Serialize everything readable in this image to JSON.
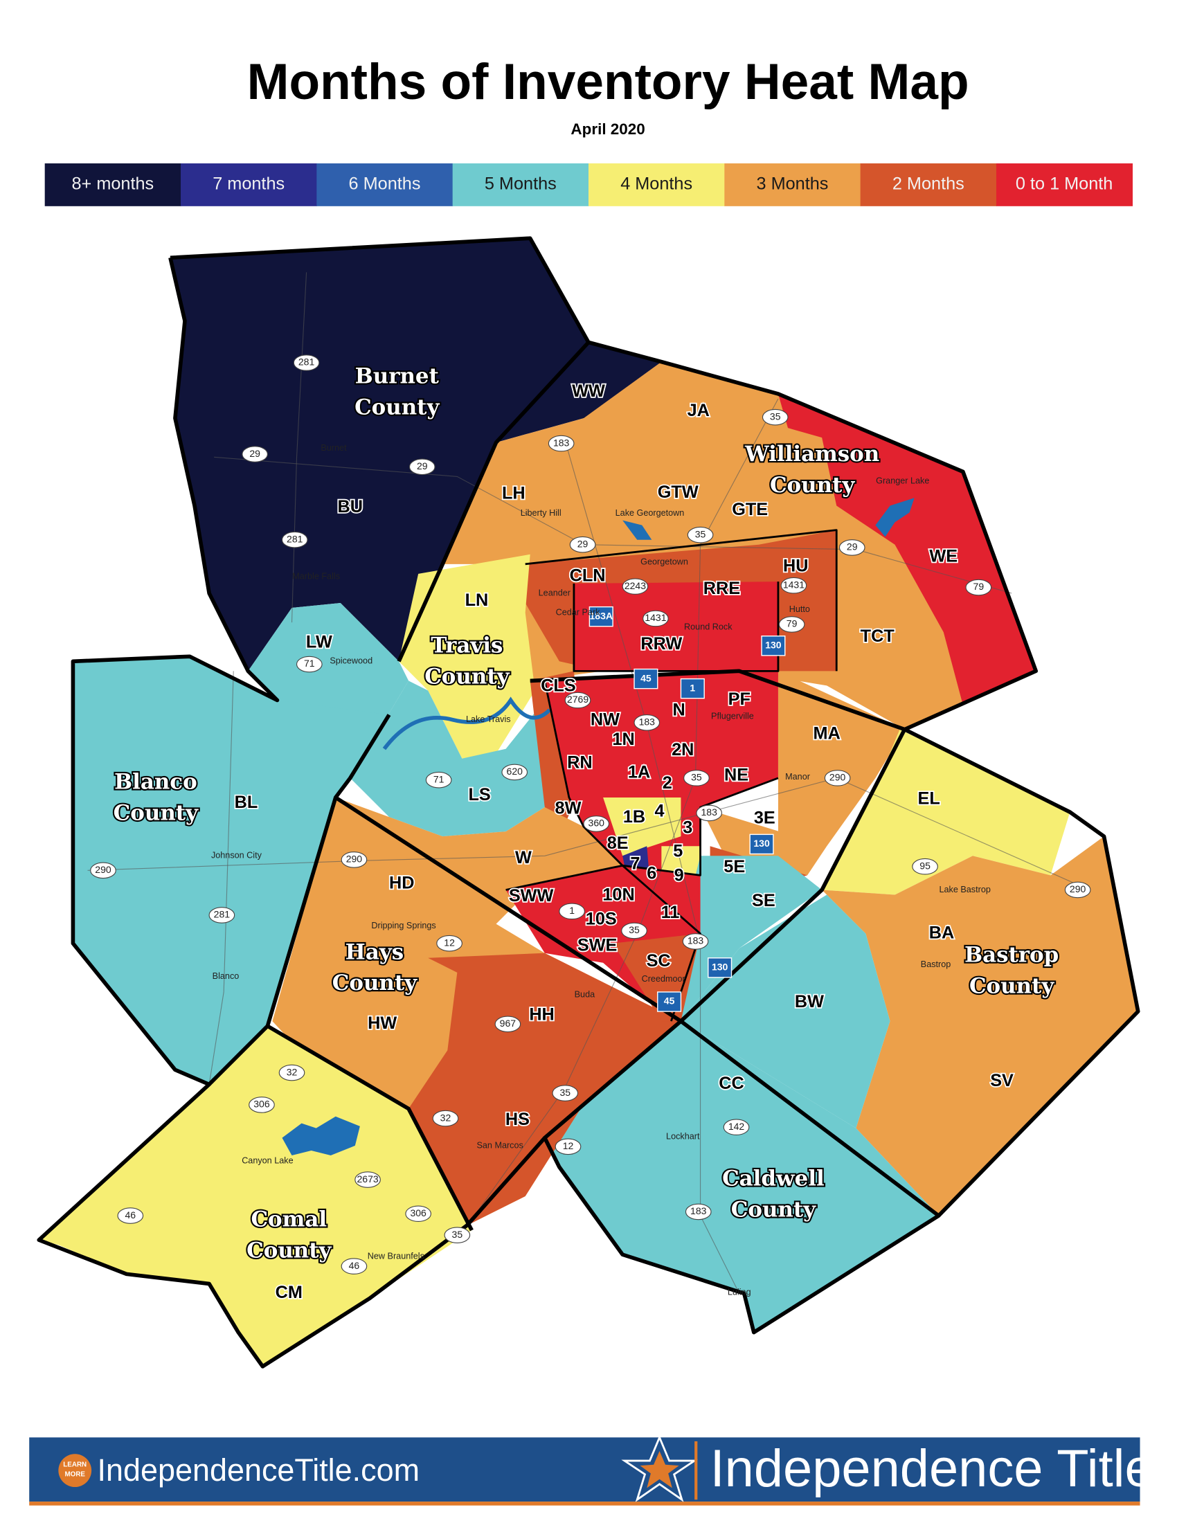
{
  "header": {
    "title": "Months of Inventory Heat Map",
    "subtitle": "April 2020"
  },
  "legend": [
    {
      "label": "8+ months",
      "color": "#10143a"
    },
    {
      "label": "7 months",
      "color": "#2b2d8e"
    },
    {
      "label": "6 Months",
      "color": "#2f60ad"
    },
    {
      "label": "5 Months",
      "color": "#6fcbcf"
    },
    {
      "label": "4 Months",
      "color": "#f6ee73"
    },
    {
      "label": "3 Months",
      "color": "#eca04a"
    },
    {
      "label": "2 Months",
      "color": "#d5552b"
    },
    {
      "label": "0 to 1 Month",
      "color": "#e2222f"
    }
  ],
  "counties": [
    [
      "Burnet",
      "County"
    ],
    [
      "Williamson",
      "County"
    ],
    [
      "Travis",
      "County"
    ],
    [
      "Blanco",
      "County"
    ],
    [
      "Hays",
      "County"
    ],
    [
      "Bastrop",
      "County"
    ],
    [
      "Caldwell",
      "County"
    ],
    [
      "Comal",
      "County"
    ]
  ],
  "areas": [
    "WW",
    "JA",
    "LH",
    "GTW",
    "GTE",
    "HU",
    "WE",
    "TCT",
    "CLN",
    "RRE",
    "RRW",
    "LN",
    "LW",
    "CLS",
    "NW",
    "N",
    "PF",
    "MA",
    "1N",
    "2N",
    "RN",
    "1A",
    "2",
    "NE",
    "LS",
    "8W",
    "1B",
    "4",
    "3",
    "3E",
    "8E",
    "W",
    "7",
    "6",
    "5",
    "9",
    "5E",
    "SE",
    "SWW",
    "10N",
    "10S",
    "11",
    "SWE",
    "SC",
    "HD",
    "HW",
    "HH",
    "BL",
    "EL",
    "BA",
    "BW",
    "CC",
    "SV",
    "HS",
    "CM",
    "BU"
  ],
  "places": [
    "Burnet",
    "Marble Falls",
    "Liberty Hill",
    "Lake Georgetown",
    "Georgetown",
    "Granger Lake",
    "Leander",
    "Cedar Park",
    "Round Rock",
    "Hutto",
    "Pflugerville",
    "Spicewood",
    "Lake Travis",
    "Manor",
    "Johnson City",
    "Blanco",
    "Dripping Springs",
    "Buda",
    "Creedmoor",
    "Lake Bastrop",
    "Bastrop",
    "Lockhart",
    "San Marcos",
    "Canyon Lake",
    "New Braunfels",
    "Luling"
  ],
  "highways": [
    "281",
    "29",
    "29",
    "281",
    "183",
    "35",
    "29",
    "35",
    "29",
    "79",
    "2243",
    "1431",
    "1431",
    "79",
    "71",
    "2769",
    "183",
    "620",
    "71",
    "360",
    "290",
    "35",
    "183",
    "290",
    "290",
    "281",
    "95",
    "290",
    "1",
    "35",
    "12",
    "183",
    "967",
    "32",
    "306",
    "35",
    "32",
    "12",
    "142",
    "2673",
    "306",
    "46",
    "46",
    "183",
    "35"
  ],
  "toll_roads": [
    "183A",
    "45",
    "1",
    "130",
    "130",
    "130",
    "45"
  ],
  "footer": {
    "badge": [
      "LEARN",
      "MORE"
    ],
    "website": "IndependenceTitle.com",
    "brand": "Independence Title"
  }
}
